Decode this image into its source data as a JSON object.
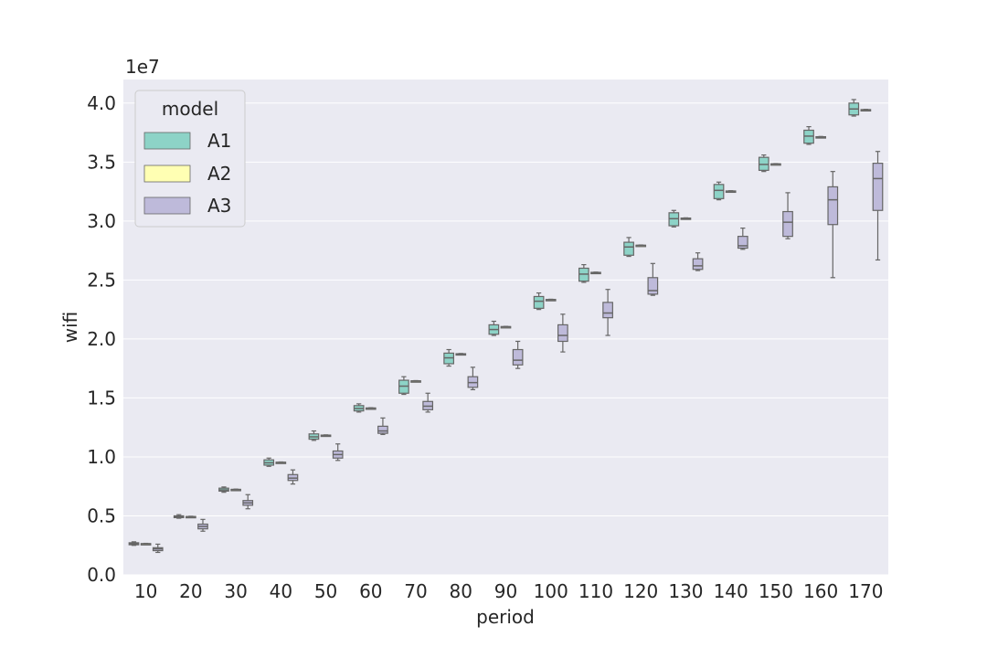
{
  "chart_data": {
    "type": "box",
    "xlabel": "period",
    "ylabel": "wifi",
    "y_scale_label": "1e7",
    "ylim": [
      0,
      4.2
    ],
    "y_ticks": [
      "0.0",
      "0.5",
      "1.0",
      "1.5",
      "2.0",
      "2.5",
      "3.0",
      "3.5",
      "4.0"
    ],
    "y_tick_values": [
      0,
      0.5,
      1.0,
      1.5,
      2.0,
      2.5,
      3.0,
      3.5,
      4.0
    ],
    "categories": [
      "10",
      "20",
      "30",
      "40",
      "50",
      "60",
      "70",
      "80",
      "90",
      "100",
      "110",
      "120",
      "130",
      "140",
      "150",
      "160",
      "170"
    ],
    "grid": true,
    "legend": {
      "title": "model",
      "placement": "top-left"
    },
    "series": [
      {
        "name": "A1",
        "color": "#8dd3c7",
        "boxes": [
          [
            2.5,
            2.55,
            2.65,
            2.72,
            2.8
          ],
          [
            4.8,
            4.85,
            4.92,
            5.0,
            5.1
          ],
          [
            7.0,
            7.1,
            7.2,
            7.35,
            7.45
          ],
          [
            9.2,
            9.3,
            9.5,
            9.75,
            9.9
          ],
          [
            11.4,
            11.5,
            11.7,
            11.95,
            12.2
          ],
          [
            13.8,
            13.9,
            14.1,
            14.35,
            14.5
          ],
          [
            15.3,
            15.4,
            16.0,
            16.5,
            16.8
          ],
          [
            17.7,
            17.9,
            18.4,
            18.8,
            19.1
          ],
          [
            20.3,
            20.4,
            20.8,
            21.2,
            21.5
          ],
          [
            22.5,
            22.6,
            23.2,
            23.6,
            23.9
          ],
          [
            24.8,
            24.9,
            25.5,
            26.0,
            26.3
          ],
          [
            27.0,
            27.1,
            27.8,
            28.2,
            28.6
          ],
          [
            29.5,
            29.6,
            30.2,
            30.7,
            30.9
          ],
          [
            31.8,
            31.9,
            32.6,
            33.1,
            33.3
          ],
          [
            34.2,
            34.3,
            34.8,
            35.4,
            35.6
          ],
          [
            36.5,
            36.6,
            37.2,
            37.7,
            38.0
          ],
          [
            38.9,
            39.0,
            39.5,
            40.0,
            40.3
          ]
        ]
      },
      {
        "name": "A2",
        "color": "#ffffb3",
        "boxes": [
          [
            2.6,
            2.62,
            2.63,
            2.65,
            2.67
          ],
          [
            4.9,
            4.92,
            4.93,
            4.95,
            4.97
          ],
          [
            7.2,
            7.22,
            7.23,
            7.25,
            7.27
          ],
          [
            9.5,
            9.52,
            9.53,
            9.55,
            9.57
          ],
          [
            11.8,
            11.82,
            11.83,
            11.85,
            11.87
          ],
          [
            14.1,
            14.12,
            14.13,
            14.15,
            14.17
          ],
          [
            16.4,
            16.42,
            16.43,
            16.45,
            16.47
          ],
          [
            18.7,
            18.72,
            18.73,
            18.75,
            18.77
          ],
          [
            21.0,
            21.02,
            21.03,
            21.05,
            21.07
          ],
          [
            23.3,
            23.32,
            23.33,
            23.35,
            23.37
          ],
          [
            25.6,
            25.62,
            25.63,
            25.65,
            25.67
          ],
          [
            27.9,
            27.92,
            27.93,
            27.95,
            27.97
          ],
          [
            30.2,
            30.22,
            30.23,
            30.25,
            30.27
          ],
          [
            32.5,
            32.52,
            32.53,
            32.55,
            32.57
          ],
          [
            34.8,
            34.82,
            34.83,
            34.85,
            34.87
          ],
          [
            37.1,
            37.12,
            37.13,
            37.15,
            37.17
          ],
          [
            39.4,
            39.42,
            39.43,
            39.45,
            39.47
          ]
        ]
      },
      {
        "name": "A3",
        "color": "#bebada",
        "boxes": [
          [
            1.9,
            2.05,
            2.2,
            2.3,
            2.6
          ],
          [
            3.7,
            3.9,
            4.1,
            4.3,
            4.7
          ],
          [
            5.6,
            5.9,
            6.1,
            6.3,
            6.8
          ],
          [
            7.7,
            8.0,
            8.2,
            8.5,
            8.9
          ],
          [
            9.7,
            9.9,
            10.2,
            10.5,
            11.1
          ],
          [
            11.9,
            12.0,
            12.2,
            12.6,
            13.3
          ],
          [
            13.8,
            14.0,
            14.3,
            14.7,
            15.4
          ],
          [
            15.7,
            15.9,
            16.3,
            16.8,
            17.6
          ],
          [
            17.5,
            17.8,
            18.2,
            19.1,
            19.8
          ],
          [
            18.9,
            19.8,
            20.3,
            21.2,
            22.1
          ],
          [
            20.3,
            21.8,
            22.2,
            23.1,
            24.2
          ],
          [
            23.7,
            23.8,
            24.1,
            25.2,
            26.4
          ],
          [
            25.8,
            25.9,
            26.2,
            26.8,
            27.3
          ],
          [
            27.6,
            27.7,
            27.9,
            28.7,
            29.4
          ],
          [
            28.5,
            28.7,
            29.9,
            30.8,
            32.4
          ],
          [
            25.2,
            29.7,
            31.8,
            32.9,
            34.2
          ],
          [
            26.7,
            30.9,
            33.6,
            34.9,
            35.9
          ]
        ]
      }
    ]
  }
}
